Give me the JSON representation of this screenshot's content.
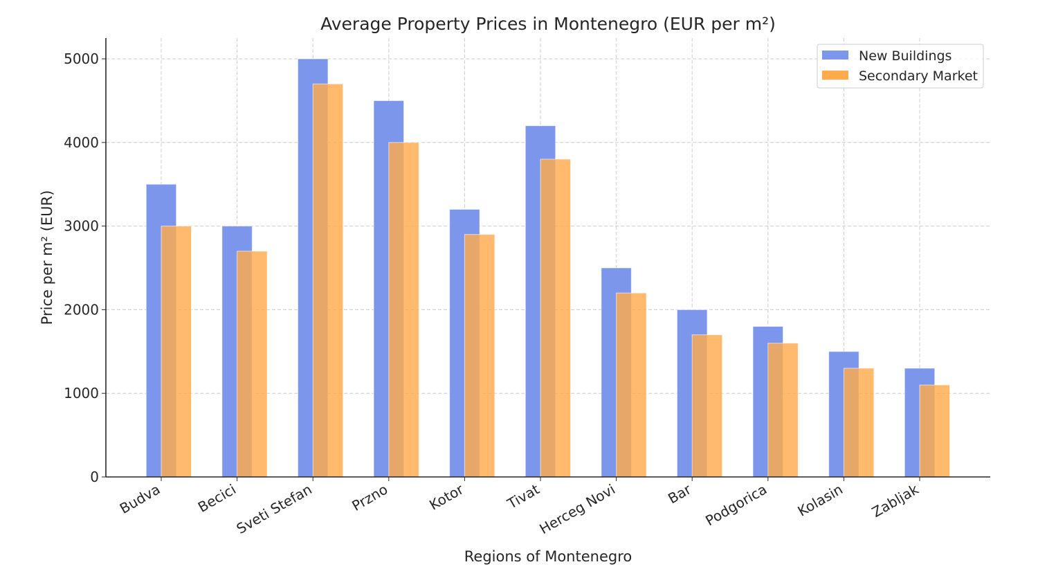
{
  "chart_data": {
    "type": "bar",
    "title": "Average Property Prices in Montenegro (EUR per m²)",
    "xlabel": "Regions of Montenegro",
    "ylabel": "Price per m² (EUR)",
    "categories": [
      "Budva",
      "Becici",
      "Sveti Stefan",
      "Przno",
      "Kotor",
      "Tivat",
      "Herceg Novi",
      "Bar",
      "Podgorica",
      "Kolasin",
      "Zabljak"
    ],
    "series": [
      {
        "name": "New Buildings",
        "color": "#7b96ea",
        "values": [
          3500,
          3000,
          5000,
          4500,
          3200,
          4200,
          2500,
          2000,
          1800,
          1500,
          1300
        ]
      },
      {
        "name": "Secondary Market",
        "color": "#ffab4d",
        "values": [
          3000,
          2700,
          4700,
          4000,
          2900,
          3800,
          2200,
          1700,
          1600,
          1300,
          1100
        ]
      }
    ],
    "ylim": [
      0,
      5250
    ],
    "yticks": [
      0,
      1000,
      2000,
      3000,
      4000,
      5000
    ],
    "grid": true,
    "legend": "top-right"
  }
}
